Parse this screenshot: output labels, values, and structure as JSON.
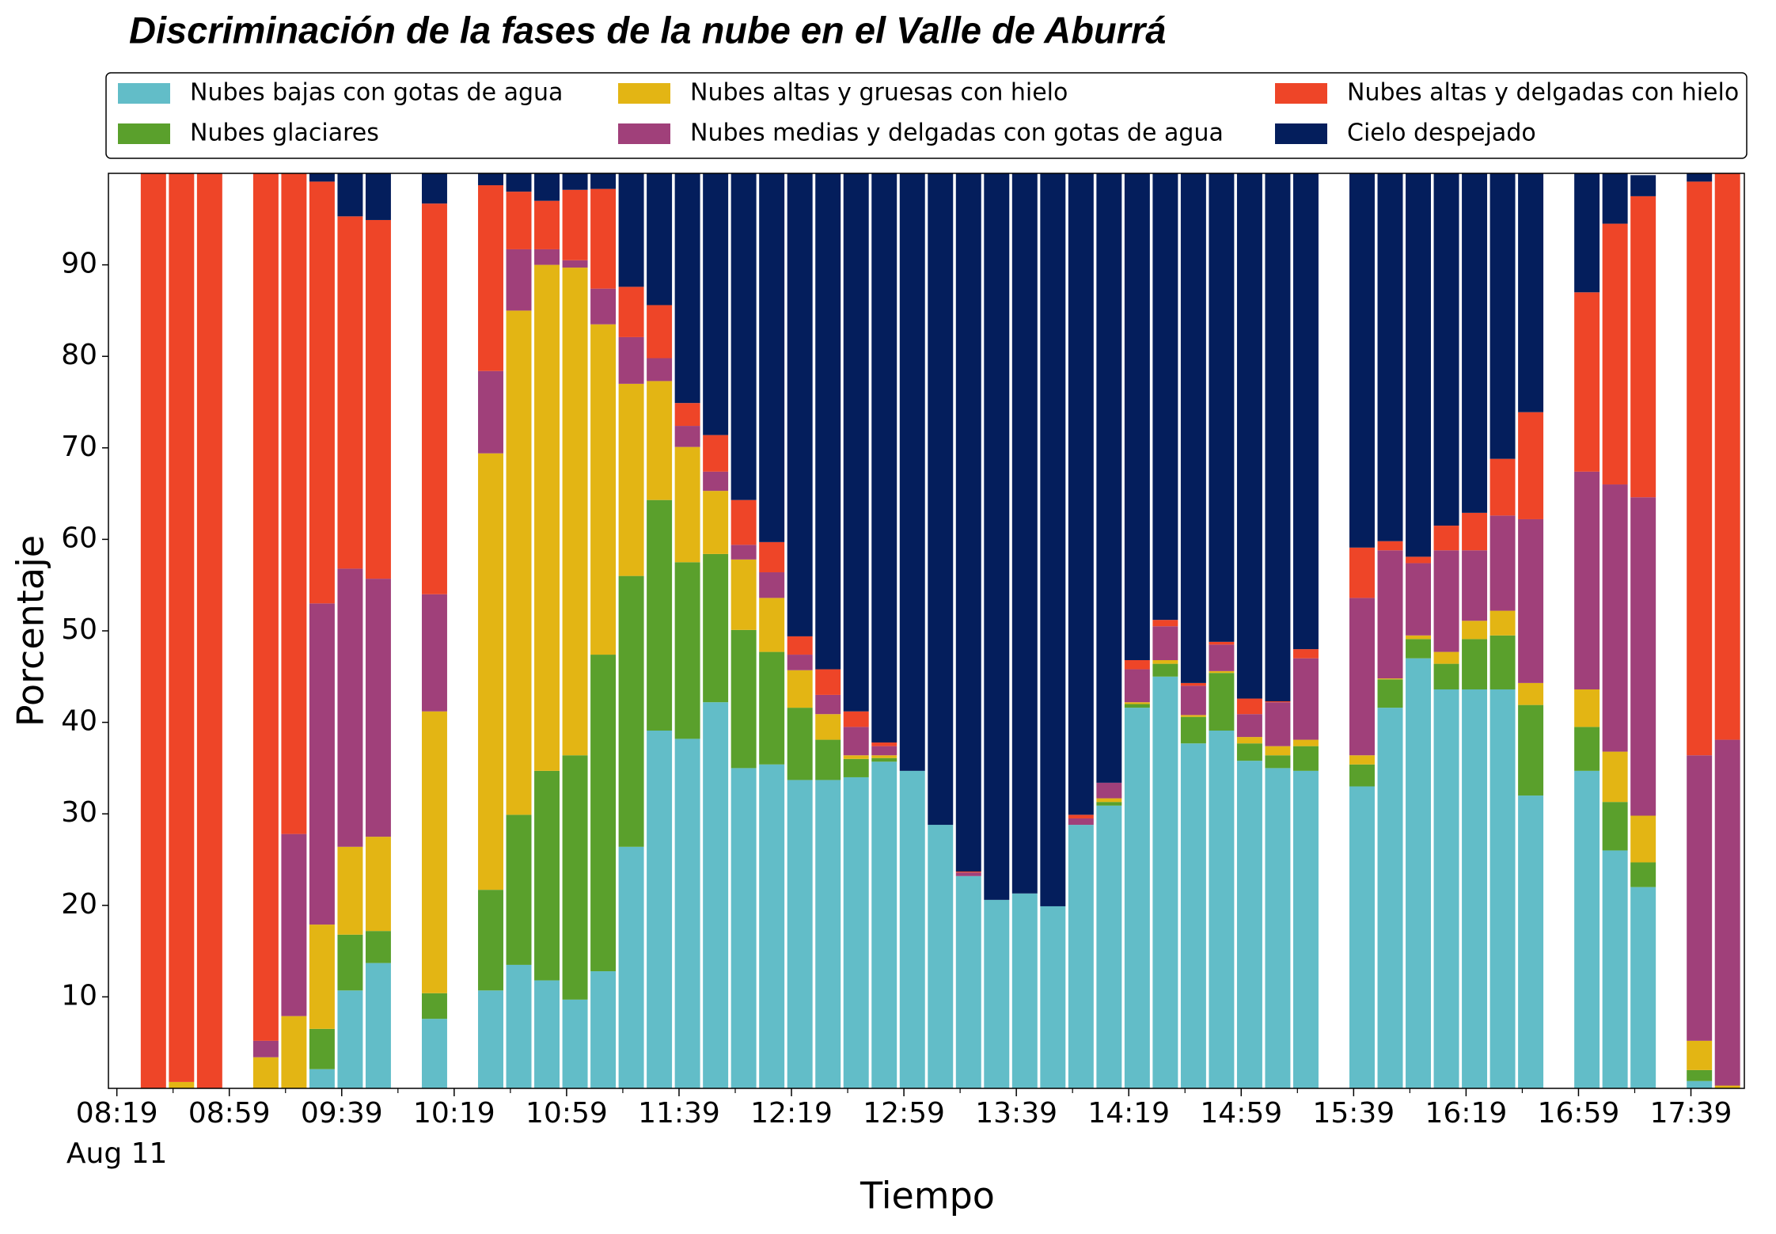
{
  "chart_data": {
    "type": "stacked_bar",
    "title": "Discriminación de la fases de la nube en el Valle de Aburrá",
    "xlabel": "Tiempo",
    "ylabel": "Porcentaje",
    "x": [
      "08:32",
      "08:42",
      "08:52",
      "09:12",
      "09:22",
      "09:32",
      "09:42",
      "09:52",
      "10:12",
      "10:32",
      "10:42",
      "10:52",
      "11:02",
      "11:12",
      "11:22",
      "11:32",
      "11:42",
      "11:52",
      "12:02",
      "12:12",
      "12:22",
      "12:32",
      "12:42",
      "12:52",
      "13:02",
      "13:12",
      "13:22",
      "13:32",
      "13:42",
      "13:52",
      "14:02",
      "14:12",
      "14:22",
      "14:32",
      "14:42",
      "14:52",
      "15:02",
      "15:12",
      "15:22",
      "15:42",
      "15:52",
      "16:02",
      "16:12",
      "16:22",
      "16:32",
      "16:42",
      "17:02",
      "17:12",
      "17:22",
      "17:42",
      "17:52"
    ],
    "series": [
      {
        "name": "Nubes bajas con gotas de agua",
        "color": "#62bdc8",
        "values": [
          0,
          0,
          0,
          0,
          0,
          2.1,
          10.7,
          13.7,
          7.6,
          10.7,
          13.5,
          11.8,
          9.7,
          12.8,
          26.4,
          39.1,
          38.2,
          42.2,
          35,
          35.4,
          33.7,
          33.7,
          34,
          35.7,
          34.7,
          28.8,
          23.2,
          20.6,
          21.3,
          19.9,
          28.8,
          30.9,
          41.6,
          45,
          37.7,
          39.1,
          35.8,
          35,
          34.7,
          33,
          41.6,
          47,
          43.6,
          43.6,
          43.6,
          32,
          34.7,
          26,
          22,
          0.8,
          0
        ]
      },
      {
        "name": "Nubes glaciares",
        "color": "#5aa02c",
        "values": [
          0,
          0,
          0,
          0,
          0,
          4.4,
          6.1,
          3.5,
          2.8,
          11,
          16.4,
          22.9,
          26.7,
          34.6,
          29.6,
          25.2,
          19.3,
          16.2,
          15.1,
          12.3,
          7.9,
          4.4,
          2,
          0.4,
          0,
          0,
          0,
          0,
          0,
          0,
          0,
          0.4,
          0.4,
          1.4,
          2.9,
          6.3,
          1.9,
          1.4,
          2.7,
          2.4,
          3.1,
          2.1,
          2.8,
          5.5,
          5.9,
          9.9,
          4.8,
          5.3,
          2.7,
          1.2,
          0
        ]
      },
      {
        "name": "Nubes altas y gruesas con hielo",
        "color": "#e3b514",
        "values": [
          0,
          0.7,
          0,
          3.4,
          7.9,
          11.4,
          9.6,
          10.3,
          30.8,
          47.7,
          55.1,
          55.3,
          53.3,
          36.1,
          21,
          13,
          12.6,
          6.9,
          7.7,
          5.9,
          4.1,
          2.8,
          0.4,
          0.3,
          0,
          0,
          0,
          0,
          0,
          0,
          0,
          0.4,
          0.2,
          0.4,
          0.2,
          0.2,
          0.7,
          1,
          0.7,
          1,
          0.1,
          0.4,
          1.3,
          2,
          2.7,
          2.4,
          4.1,
          5.5,
          5.1,
          3.2,
          0.3
        ]
      },
      {
        "name": "Nubes medias y delgadas con gotas de agua",
        "color": "#a0407a",
        "values": [
          0,
          0,
          0,
          1.8,
          19.9,
          35.1,
          30.4,
          28.2,
          12.8,
          9,
          6.7,
          1.7,
          0.8,
          3.9,
          5.1,
          2.5,
          2.3,
          2.1,
          1.6,
          2.8,
          1.7,
          2.1,
          3.1,
          1,
          0,
          0,
          0.4,
          0,
          0,
          0,
          0.7,
          1.7,
          3.6,
          3.7,
          3.2,
          2.9,
          2.5,
          4.8,
          8.9,
          17.2,
          14,
          7.9,
          11.1,
          7.7,
          10.4,
          17.9,
          23.8,
          29.2,
          34.8,
          31.2,
          37.8
        ]
      },
      {
        "name": "Nubes altas y delgadas con hielo",
        "color": "#ee4528",
        "values": [
          100,
          99.3,
          100,
          94.8,
          72.2,
          46.1,
          38.5,
          39.2,
          42.7,
          20.3,
          6.3,
          5.3,
          7.7,
          10.9,
          5.5,
          5.8,
          2.5,
          4,
          4.9,
          3.3,
          2,
          2.8,
          1.7,
          0.4,
          0,
          0,
          0.1,
          0,
          0,
          0,
          0.4,
          0,
          1,
          0.7,
          0.3,
          0.3,
          1.7,
          0.1,
          1,
          5.5,
          1,
          0.7,
          2.7,
          4.1,
          6.2,
          11.7,
          19.6,
          28.5,
          32.9,
          62.7,
          61.9
        ]
      },
      {
        "name": "Cielo despejado",
        "color": "#041e5c",
        "values": [
          0,
          0,
          0,
          0,
          0,
          0.9,
          4.7,
          5.1,
          3.3,
          1.3,
          2,
          3,
          1.8,
          1.7,
          12.4,
          14.4,
          25.1,
          28.6,
          35.7,
          40.3,
          50.6,
          54.2,
          58.8,
          62.2,
          65.3,
          71.2,
          76.3,
          79.4,
          78.7,
          80.1,
          70.1,
          66.6,
          53.2,
          48.8,
          55.7,
          51.2,
          57.4,
          57.7,
          52,
          40.9,
          40.2,
          41.9,
          38.5,
          37.1,
          31.2,
          26.1,
          13,
          5.5,
          2.3,
          0.9,
          0
        ]
      }
    ],
    "xlim": [
      "08:16",
      "17:58"
    ],
    "xticks": [
      "08:19",
      "08:59",
      "09:39",
      "10:19",
      "10:59",
      "11:39",
      "12:19",
      "12:59",
      "13:39",
      "14:19",
      "14:59",
      "15:39",
      "16:19",
      "16:59",
      "17:39"
    ],
    "xminorticks": [
      "08:39",
      "09:19",
      "09:59",
      "10:39",
      "11:19",
      "11:59",
      "12:39",
      "13:19",
      "13:59",
      "14:39",
      "15:19",
      "15:59",
      "16:39",
      "17:19"
    ],
    "xtick_sublabel": "Aug 11",
    "ylim": [
      0,
      100
    ],
    "yticks": [
      10,
      20,
      30,
      40,
      50,
      60,
      70,
      80,
      90
    ],
    "grid": false,
    "legend": "top",
    "legend_columns": 3
  }
}
